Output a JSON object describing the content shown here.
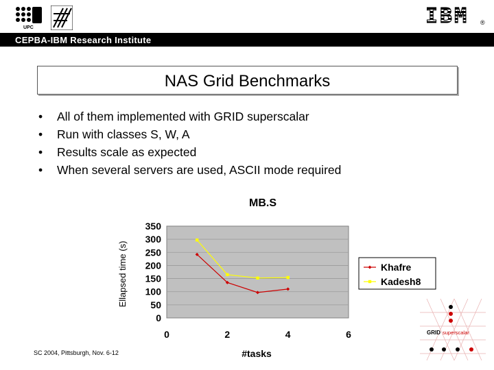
{
  "header": {
    "institute": "CEPBA-IBM Research Institute",
    "ibm_logo": "IBM",
    "registered_mark": "®",
    "left_logos": [
      "upc-logo",
      "fib-logo"
    ]
  },
  "slide": {
    "title": "NAS Grid Benchmarks",
    "bullet_glyph": "•",
    "bullets": [
      "All of them implemented with GRID superscalar",
      "Run with classes S, W, A",
      "Results scale as expected",
      "When several servers are used, ASCII mode required"
    ]
  },
  "footer": {
    "text": "SC 2004, Pittsburgh, Nov. 6-12",
    "grid_logo_text": "GRID",
    "grid_logo_text2": "superscalar"
  },
  "chart_data": {
    "type": "line",
    "title": "MB.S",
    "xlabel": "#tasks",
    "ylabel": "Ellapsed time (s)",
    "xlim": [
      0,
      6
    ],
    "ylim": [
      0,
      350
    ],
    "xticks": [
      "0",
      "2",
      "4",
      "6"
    ],
    "yticks": [
      "0",
      "50",
      "100",
      "150",
      "200",
      "250",
      "300",
      "350"
    ],
    "grid": "horizontal",
    "legend_position": "right",
    "series": [
      {
        "name": "Khafre",
        "color": "#cc0000",
        "marker": "diamond",
        "x": [
          1,
          2,
          3,
          4
        ],
        "y": [
          242,
          135,
          97,
          110
        ]
      },
      {
        "name": "Kadesh8",
        "color": "#ffff00",
        "marker": "square",
        "x": [
          1,
          2,
          3,
          4
        ],
        "y": [
          297,
          165,
          152,
          154
        ]
      }
    ]
  }
}
